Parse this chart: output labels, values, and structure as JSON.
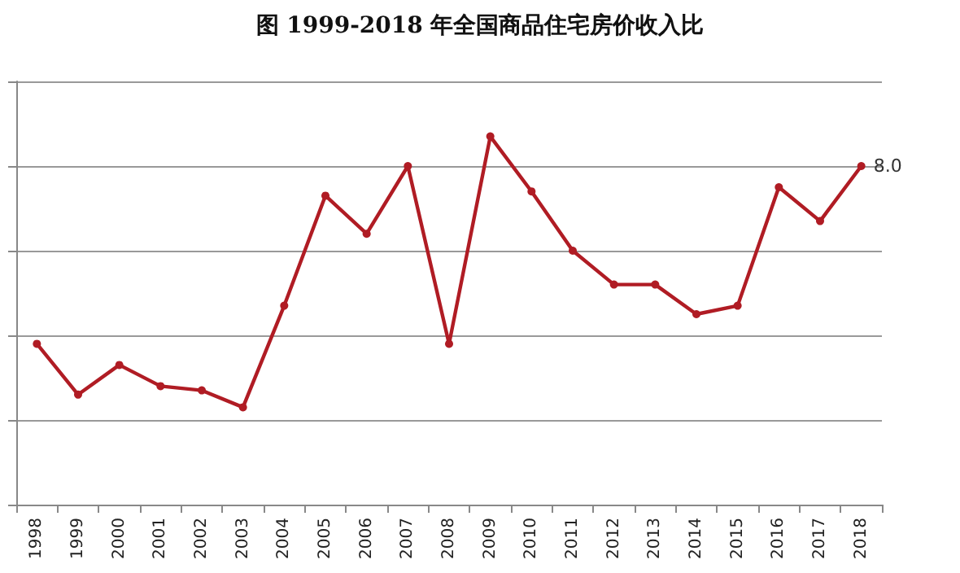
{
  "chart_data": {
    "type": "line",
    "title": "图 1999-2018 年全国商品住宅房价收入比",
    "categories": [
      "1998",
      "1999",
      "2000",
      "2001",
      "2002",
      "2003",
      "2004",
      "2005",
      "2006",
      "2007",
      "2008",
      "2009",
      "2010",
      "2011",
      "2012",
      "2013",
      "2014",
      "2015",
      "2016",
      "2017",
      "2018"
    ],
    "ylim": [
      0,
      10
    ],
    "yticks": [
      {
        "value": 0,
        "label": null
      },
      {
        "value": 2,
        "label": null
      },
      {
        "value": 4,
        "label": null
      },
      {
        "value": 6,
        "label": null
      },
      {
        "value": 8,
        "label": null
      },
      {
        "value": 10,
        "label": null
      }
    ],
    "series": [
      {
        "color": "#b01c24",
        "values": [
          3.8,
          2.6,
          3.3,
          2.8,
          2.7,
          2.3,
          4.7,
          7.3,
          6.4,
          8.0,
          3.8,
          8.7,
          7.4,
          6.0,
          5.2,
          5.2,
          4.5,
          4.7,
          7.5,
          6.7,
          8.0
        ],
        "value_labels": [
          null,
          null,
          null,
          null,
          null,
          null,
          null,
          null,
          null,
          null,
          null,
          null,
          null,
          null,
          null,
          null,
          null,
          null,
          null,
          null,
          "8.0"
        ]
      }
    ],
    "grid": "y",
    "marker": "circle",
    "line_style": "solid"
  }
}
